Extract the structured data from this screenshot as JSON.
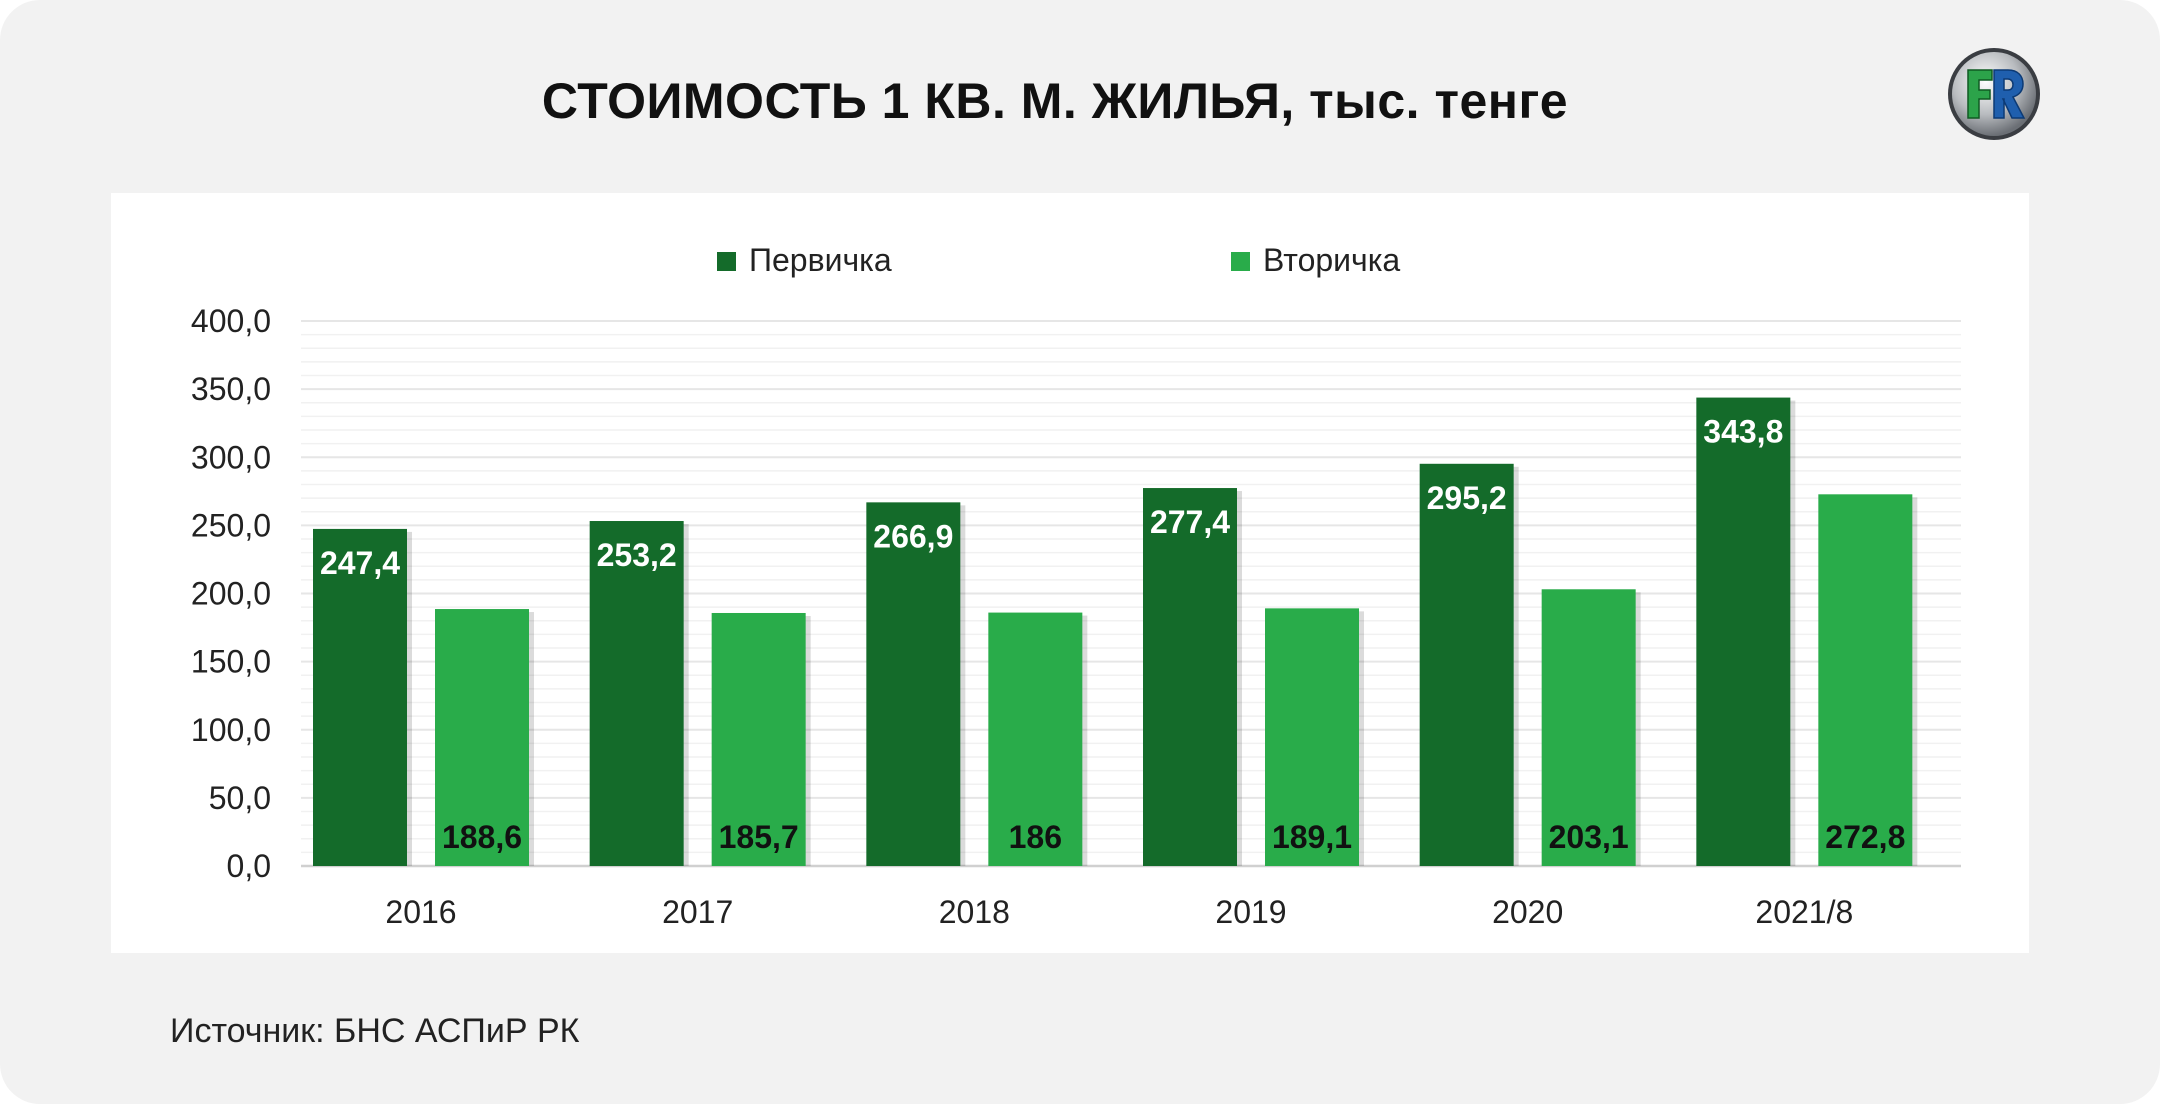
{
  "title": "СТОИМОСТЬ 1 КВ. М. ЖИЛЬЯ, тыс. тенге",
  "source": "Источник: БНС АСПиР РК",
  "logo": {
    "icon": "fr-logo-icon",
    "text": "FR"
  },
  "colors": {
    "primary": "#146b2a",
    "secondary": "#29ac4a",
    "grid": "#e6e6e6",
    "panel": "#ffffff",
    "background": "#f2f2f2"
  },
  "chart_data": {
    "type": "bar",
    "categories": [
      "2016",
      "2017",
      "2018",
      "2019",
      "2020",
      "2021/8"
    ],
    "series": [
      {
        "name": "Первичка",
        "values": [
          247.4,
          253.2,
          266.9,
          277.4,
          295.2,
          343.8
        ],
        "labels": [
          "247,4",
          "253,2",
          "266,9",
          "277,4",
          "295,2",
          "343,8"
        ]
      },
      {
        "name": "Вторичка",
        "values": [
          188.6,
          185.7,
          186,
          189.1,
          203.1,
          272.8
        ],
        "labels": [
          "188,6",
          "185,7",
          "186",
          "189,1",
          "203,1",
          "272,8"
        ]
      }
    ],
    "yticks": [
      "0,0",
      "50,0",
      "100,0",
      "150,0",
      "200,0",
      "250,0",
      "300,0",
      "350,0",
      "400,0"
    ],
    "ylim": [
      0,
      400
    ],
    "legend": "top-center",
    "grid": true
  }
}
